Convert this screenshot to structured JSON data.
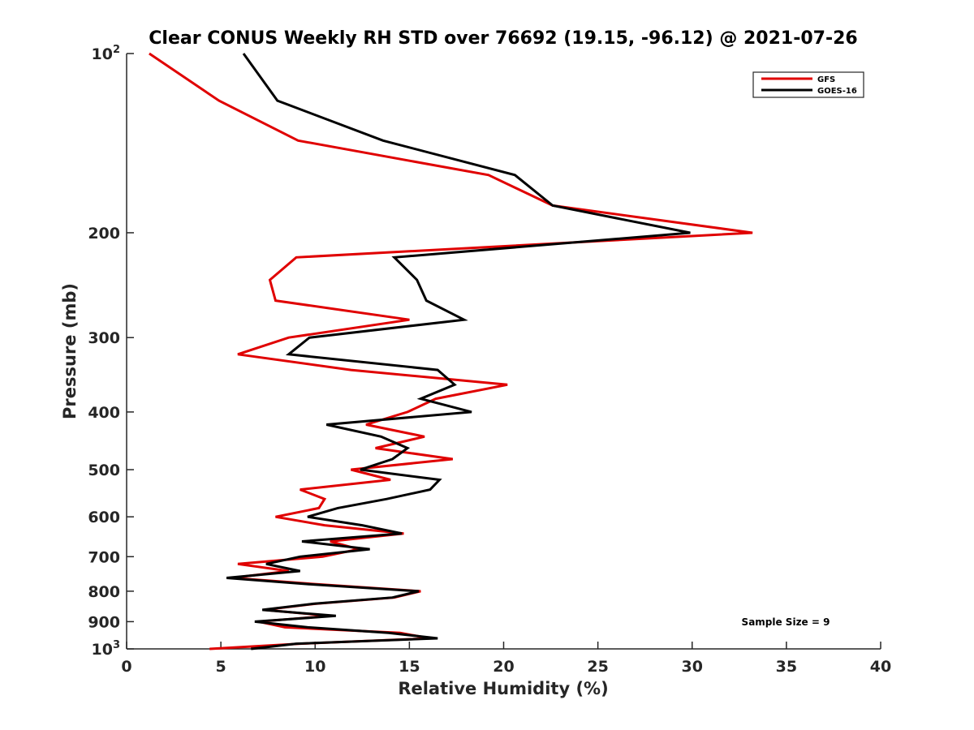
{
  "chart_data": {
    "type": "line",
    "title": "Clear CONUS Weekly RH STD over 76692 (19.15, -96.12) @ 2021-07-26",
    "xlabel": "Relative Humidity (%)",
    "ylabel": "Pressure (mb)",
    "xlim": [
      0,
      40
    ],
    "ylim": [
      100,
      1000
    ],
    "yscale": "log",
    "yreversed": true,
    "grid": false,
    "legend_position": "top-right",
    "x_ticks": [
      0,
      5,
      10,
      15,
      20,
      25,
      30,
      35,
      40
    ],
    "x_tick_labels": [
      "0",
      "5",
      "10",
      "15",
      "20",
      "25",
      "30",
      "35",
      "40"
    ],
    "y_ticks": [
      100,
      200,
      300,
      400,
      500,
      600,
      700,
      800,
      900,
      1000
    ],
    "y_tick_labels": [
      {
        "base": "10",
        "sup": "2"
      },
      {
        "base": "200",
        "sup": ""
      },
      {
        "base": "300",
        "sup": ""
      },
      {
        "base": "400",
        "sup": ""
      },
      {
        "base": "500",
        "sup": ""
      },
      {
        "base": "600",
        "sup": ""
      },
      {
        "base": "700",
        "sup": ""
      },
      {
        "base": "800",
        "sup": ""
      },
      {
        "base": "900",
        "sup": ""
      },
      {
        "base": "10",
        "sup": "3"
      }
    ],
    "pressure": [
      100,
      120,
      140,
      160,
      180,
      200,
      220,
      240,
      260,
      280,
      300,
      320,
      340,
      360,
      380,
      400,
      420,
      440,
      460,
      480,
      500,
      520,
      540,
      560,
      580,
      600,
      620,
      640,
      660,
      680,
      700,
      720,
      740,
      760,
      780,
      800,
      820,
      840,
      860,
      880,
      900,
      920,
      940,
      960,
      980,
      1000
    ],
    "series": [
      {
        "name": "GFS",
        "color": "#e00000",
        "values": [
          1.2,
          4.9,
          9.1,
          19.2,
          22.6,
          33.2,
          9.0,
          7.6,
          7.9,
          15.0,
          8.6,
          5.9,
          11.9,
          20.2,
          16.4,
          14.9,
          12.7,
          15.8,
          13.2,
          17.3,
          11.9,
          14.0,
          9.2,
          10.5,
          10.2,
          7.9,
          10.5,
          14.7,
          10.8,
          12.3,
          10.4,
          5.9,
          8.6,
          5.6,
          10.4,
          15.6,
          14.2,
          10.0,
          7.3,
          10.8,
          7.0,
          8.4,
          14.5,
          16.1,
          9.2,
          4.4
        ]
      },
      {
        "name": "GOES-16",
        "color": "#000000",
        "values": [
          6.2,
          8.0,
          13.6,
          20.6,
          22.6,
          29.9,
          14.2,
          15.4,
          15.9,
          17.9,
          9.7,
          8.6,
          16.5,
          17.4,
          15.6,
          18.3,
          10.6,
          13.5,
          14.9,
          14.1,
          12.4,
          16.6,
          16.1,
          13.8,
          11.2,
          9.6,
          12.5,
          14.6,
          9.3,
          12.9,
          9.2,
          7.4,
          9.2,
          5.3,
          10.0,
          15.5,
          14.1,
          9.9,
          7.2,
          11.1,
          6.8,
          9.6,
          13.9,
          16.5,
          9.0,
          6.6
        ]
      }
    ],
    "annotations": [
      "Sample Size = 9"
    ]
  }
}
